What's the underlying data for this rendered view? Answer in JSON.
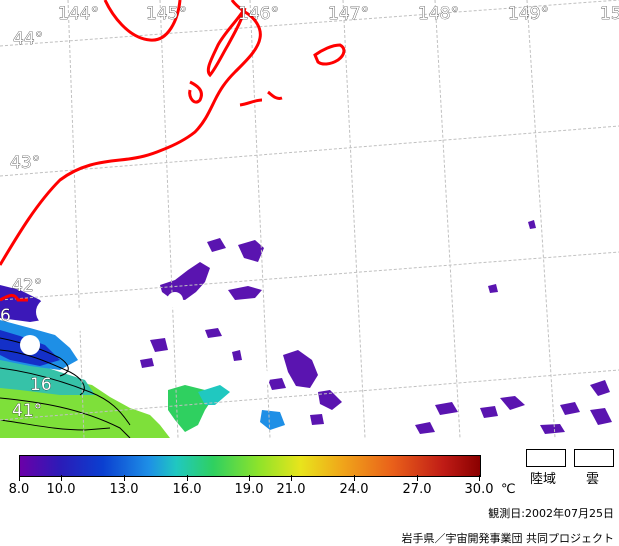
{
  "lon_labels": [
    "144°",
    "145°",
    "146°",
    "147°",
    "148°",
    "149°",
    "15"
  ],
  "lat_labels": [
    "44°",
    "43°",
    "42°",
    "41°"
  ],
  "coast_color": "#ff0000",
  "grid_color": "#c0c0c0",
  "contour_labels": [
    "6",
    "16"
  ],
  "colorbar": {
    "min": 8.0,
    "max": 30.0,
    "ticks": [
      "8.0",
      "10.0",
      "13.0",
      "16.0",
      "19.0",
      "21.0",
      "24.0",
      "27.0",
      "30.0"
    ],
    "unit": "℃"
  },
  "legend": {
    "land": "陸域",
    "cloud": "雲"
  },
  "observation_date": "観測日:2002年07月25日",
  "credit": "岩手県／宇宙開発事業団 共同プロジェクト"
}
